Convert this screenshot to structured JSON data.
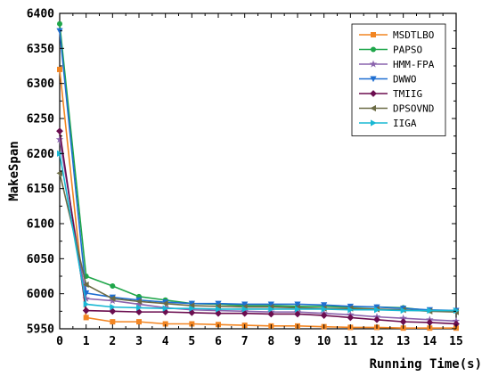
{
  "chart_data": {
    "type": "line",
    "xlabel": "Running Time(s)",
    "ylabel": "MakeSpan",
    "xlim": [
      0,
      15
    ],
    "ylim": [
      5950,
      6400
    ],
    "xticks": [
      0,
      1,
      2,
      3,
      4,
      5,
      6,
      7,
      8,
      9,
      10,
      11,
      12,
      13,
      14,
      15
    ],
    "yticks": [
      5950,
      6000,
      6050,
      6100,
      6150,
      6200,
      6250,
      6300,
      6350,
      6400
    ],
    "x": [
      0,
      1,
      2,
      3,
      4,
      5,
      6,
      7,
      8,
      9,
      10,
      11,
      12,
      13,
      14,
      15
    ],
    "legend_position": "top-right",
    "grid": false,
    "series": [
      {
        "name": "MSDTLBO",
        "color": "#f28522",
        "marker": "square",
        "values": [
          6320,
          5966,
          5960,
          5960,
          5957,
          5957,
          5956,
          5955,
          5954,
          5954,
          5953,
          5952,
          5952,
          5951,
          5951,
          5951
        ]
      },
      {
        "name": "PAPSO",
        "color": "#1fa64a",
        "marker": "circle",
        "values": [
          6385,
          6025,
          6011,
          5996,
          5991,
          5986,
          5985,
          5983,
          5983,
          5982,
          5982,
          5981,
          5981,
          5980,
          5976,
          5976
        ]
      },
      {
        "name": "HMM-FPA",
        "color": "#8a63ad",
        "marker": "star",
        "values": [
          6220,
          5993,
          5990,
          5985,
          5980,
          5977,
          5976,
          5975,
          5974,
          5974,
          5972,
          5970,
          5967,
          5965,
          5963,
          5961
        ]
      },
      {
        "name": "DWWO",
        "color": "#1f6fd1",
        "marker": "triangle-down",
        "values": [
          6375,
          6001,
          5995,
          5991,
          5988,
          5986,
          5986,
          5985,
          5985,
          5985,
          5984,
          5982,
          5981,
          5979,
          5977,
          5976
        ]
      },
      {
        "name": "TMIIG",
        "color": "#6b0d4f",
        "marker": "diamond",
        "values": [
          6232,
          5976,
          5975,
          5974,
          5974,
          5973,
          5972,
          5972,
          5971,
          5971,
          5969,
          5966,
          5963,
          5960,
          5959,
          5957
        ]
      },
      {
        "name": "DPSOVND",
        "color": "#6b6b45",
        "marker": "triangle-left",
        "values": [
          6172,
          6013,
          5993,
          5989,
          5986,
          5983,
          5982,
          5981,
          5981,
          5980,
          5979,
          5979,
          5978,
          5977,
          5975,
          5974
        ]
      },
      {
        "name": "IIGA",
        "color": "#19b8d4",
        "marker": "triangle-right",
        "values": [
          6200,
          5985,
          5981,
          5980,
          5979,
          5979,
          5978,
          5978,
          5978,
          5978,
          5978,
          5977,
          5977,
          5976,
          5976,
          5976
        ]
      }
    ]
  }
}
